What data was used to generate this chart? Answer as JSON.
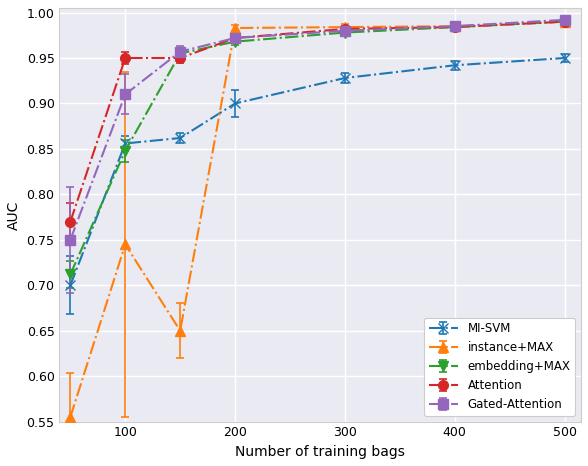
{
  "x_values": [
    50,
    100,
    150,
    200,
    300,
    400,
    500
  ],
  "mi_svm": {
    "y": [
      0.7,
      0.856,
      0.862,
      0.9,
      0.928,
      0.942,
      0.95
    ],
    "yerr": [
      0.032,
      0.008,
      0.006,
      0.015,
      0.005,
      0.005,
      0.004
    ],
    "color": "#1f77b4",
    "label": "MI-SVM",
    "marker": "x",
    "linestyle": "-.",
    "markersize": 7
  },
  "instance_max": {
    "y": [
      0.555,
      0.745,
      0.65,
      0.983,
      0.984,
      0.985,
      0.99
    ],
    "yerr": [
      0.048,
      0.19,
      0.03,
      0.003,
      0.003,
      0.003,
      0.002
    ],
    "color": "#ff7f0e",
    "label": "instance+MAX",
    "marker": "^",
    "linestyle": "-.",
    "markersize": 7
  },
  "embedding_max": {
    "y": [
      0.712,
      0.848,
      0.955,
      0.968,
      0.978,
      0.984,
      0.99
    ],
    "yerr": [
      0.015,
      0.012,
      0.005,
      0.004,
      0.003,
      0.003,
      0.002
    ],
    "color": "#2ca02c",
    "label": "embedding+MAX",
    "marker": "v",
    "linestyle": "-.",
    "markersize": 7
  },
  "attention": {
    "y": [
      0.77,
      0.95,
      0.95,
      0.972,
      0.982,
      0.984,
      0.99
    ],
    "yerr": [
      0.02,
      0.007,
      0.006,
      0.004,
      0.003,
      0.003,
      0.002
    ],
    "color": "#d62728",
    "label": "Attention",
    "marker": "o",
    "linestyle": "-.",
    "markersize": 7
  },
  "gated_attention": {
    "y": [
      0.75,
      0.91,
      0.957,
      0.972,
      0.98,
      0.985,
      0.992
    ],
    "yerr": [
      0.058,
      0.022,
      0.006,
      0.004,
      0.004,
      0.004,
      0.003
    ],
    "color": "#9467bd",
    "label": "Gated-Attention",
    "marker": "s",
    "linestyle": "-.",
    "markersize": 7
  },
  "xlabel": "Number of training bags",
  "ylabel": "AUC",
  "xlim": [
    40,
    515
  ],
  "ylim": [
    0.55,
    1.005
  ],
  "yticks": [
    0.55,
    0.6,
    0.65,
    0.7,
    0.75,
    0.8,
    0.85,
    0.9,
    0.95,
    1.0
  ],
  "xticks": [
    100,
    200,
    300,
    400,
    500
  ],
  "background_color": "#eaeaf2",
  "grid_color": "#ffffff"
}
